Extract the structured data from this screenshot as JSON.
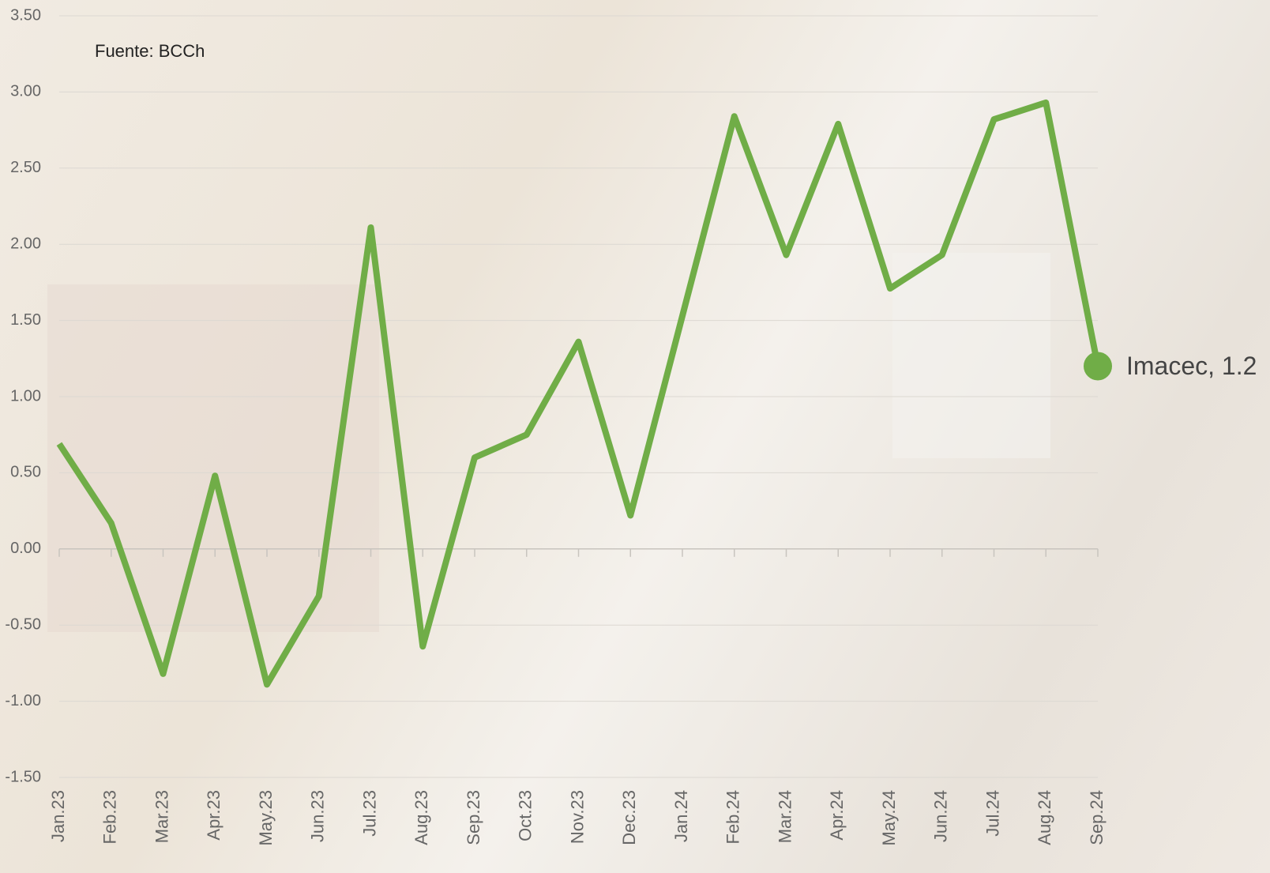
{
  "chart_data": {
    "type": "line",
    "source": "Fuente: BCCh",
    "end_label": "Imacec, 1.2",
    "color": "#70ad47",
    "categories": [
      "Jan.23",
      "Feb.23",
      "Mar.23",
      "Apr.23",
      "May.23",
      "Jun.23",
      "Jul.23",
      "Aug.23",
      "Sep.23",
      "Oct.23",
      "Nov.23",
      "Dec.23",
      "Jan.24",
      "Feb.24",
      "Mar.24",
      "Apr.24",
      "May.24",
      "Jun.24",
      "Jul.24",
      "Aug.24",
      "Sep.24"
    ],
    "values": [
      0.69,
      0.17,
      -0.82,
      0.48,
      -0.89,
      -0.31,
      2.11,
      -0.64,
      0.6,
      0.75,
      1.36,
      0.22,
      1.53,
      2.84,
      1.93,
      2.79,
      1.71,
      1.93,
      2.82,
      2.93,
      1.2
    ],
    "ylim": [
      -1.5,
      3.5
    ],
    "yticks": [
      {
        "value": -1.5,
        "label": "-1.50"
      },
      {
        "value": -1,
        "label": "-1.00"
      },
      {
        "value": -0.5,
        "label": "-0.50"
      },
      {
        "value": 0,
        "label": "0.00"
      },
      {
        "value": 0.5,
        "label": "0.50"
      },
      {
        "value": 1,
        "label": "1.00"
      },
      {
        "value": 1.5,
        "label": "1.50"
      },
      {
        "value": 2,
        "label": "2.00"
      },
      {
        "value": 2.5,
        "label": "2.50"
      },
      {
        "value": 3,
        "label": "3.00"
      },
      {
        "value": 3.5,
        "label": "3.50"
      }
    ],
    "grid": true
  }
}
